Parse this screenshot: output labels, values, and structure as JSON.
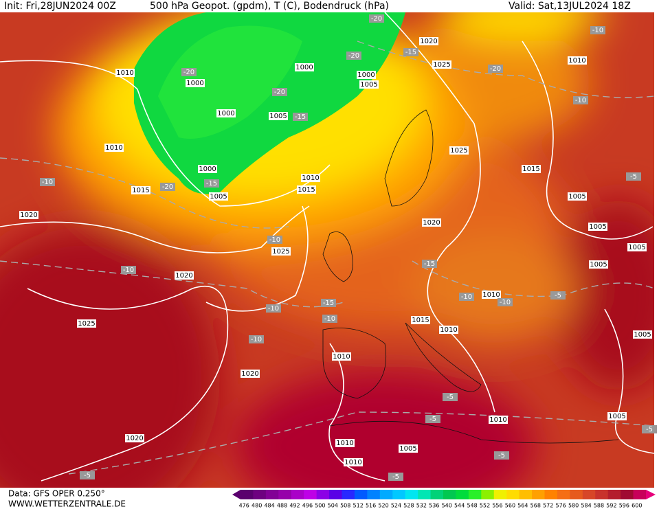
{
  "header": {
    "init": "Init: Fri,28JUN2024 00Z",
    "title": "500 hPa Geopot. (gpdm), T (C), Bodendruck (hPa)",
    "valid": "Valid: Sat,13JUL2024 18Z"
  },
  "footer": {
    "data": "Data: GFS OPER 0.250°",
    "url": "WWW.WETTERZENTRALE.DE"
  },
  "pressure_labels": [
    "1010",
    "1000",
    "1000",
    "1000",
    "1005",
    "1000",
    "1005",
    "1010",
    "1000",
    "1015",
    "1005",
    "1010",
    "1015",
    "1020",
    "1020",
    "1025",
    "1025",
    "1015",
    "1010",
    "1005",
    "1005",
    "1005",
    "1005",
    "1020",
    "1025",
    "1020",
    "1025",
    "1010",
    "1015",
    "1010",
    "1010",
    "1020",
    "1005",
    "1010",
    "1005",
    "1020",
    "1010",
    "1005",
    "1010"
  ],
  "temperature_labels": [
    "-20",
    "-20",
    "-15",
    "-20",
    "-10",
    "-10",
    "-20",
    "-20",
    "-15",
    "-10",
    "-15",
    "-20",
    "-10",
    "-5",
    "-10",
    "-15",
    "-15",
    "-10",
    "-10",
    "-10",
    "-10",
    "-5",
    "-10",
    "-5",
    "-5",
    "-5",
    "-5",
    "-5",
    "-5"
  ],
  "colorbar": {
    "values": [
      476,
      480,
      484,
      488,
      492,
      496,
      500,
      504,
      508,
      512,
      516,
      520,
      524,
      528,
      532,
      536,
      540,
      544,
      548,
      552,
      556,
      560,
      564,
      568,
      572,
      576,
      580,
      584,
      588,
      592,
      596,
      600
    ],
    "colors": [
      "#5a006e",
      "#6e0080",
      "#820096",
      "#9600aa",
      "#aa00c8",
      "#be00e6",
      "#8c00e6",
      "#5a00e6",
      "#2828ff",
      "#005aff",
      "#0082ff",
      "#00aaff",
      "#00c8ff",
      "#00e6f0",
      "#00e6b4",
      "#00d278",
      "#00c850",
      "#00dc3c",
      "#28f028",
      "#8cf000",
      "#f0f000",
      "#ffdc00",
      "#ffbe00",
      "#ffa000",
      "#ff8200",
      "#f56e14",
      "#e65a1e",
      "#d74628",
      "#c8322d",
      "#b41e2d",
      "#a00a32",
      "#c8005a"
    ]
  }
}
